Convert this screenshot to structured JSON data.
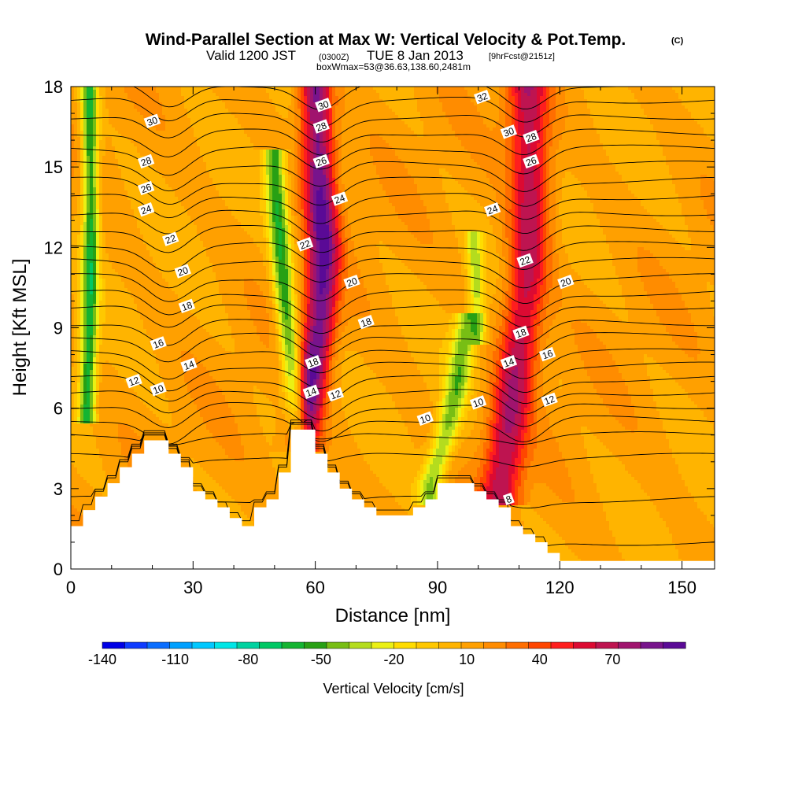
{
  "title": {
    "main": "Wind-Parallel Section at Max W: Vertical Velocity & Pot.Temp.",
    "main_suffix": "(C)",
    "valid_prefix": "Valid 1200 JST",
    "valid_small": "(0300Z)",
    "valid_date": "TUE 8 Jan 2013",
    "valid_suffix": "[9hrFcst@2151z]",
    "box": "boxWmax=53@36.63,138.60,2481m"
  },
  "chart_data": {
    "type": "heatmap",
    "xlabel": "Distance [nm]",
    "ylabel": "Height [Kft MSL]",
    "xlim": [
      0,
      158
    ],
    "ylim": [
      0,
      18
    ],
    "x_ticks": [
      0,
      30,
      60,
      90,
      120,
      150
    ],
    "x_tick_labels": [
      "0",
      "30",
      "60",
      "90",
      "120",
      "150"
    ],
    "y_ticks": [
      0,
      3,
      6,
      9,
      12,
      15,
      18
    ],
    "y_tick_labels": [
      "0",
      "3",
      "6",
      "9",
      "12",
      "15",
      "18"
    ],
    "colorbar": {
      "label": "Vertical Velocity [cm/s]",
      "tick_labels": [
        "-140",
        "-110",
        "-80",
        "-50",
        "-20",
        "10",
        "40",
        "70"
      ],
      "tick_values": [
        -140,
        -110,
        -80,
        -50,
        -20,
        10,
        40,
        70
      ],
      "range": [
        -140,
        100
      ],
      "colors": [
        "#0000e6",
        "#0f3cff",
        "#0a6eff",
        "#00a0ff",
        "#00c8ff",
        "#00e6e6",
        "#00d2a0",
        "#00c864",
        "#14b432",
        "#28a014",
        "#78be14",
        "#b4dc1e",
        "#ebf014",
        "#ffdc00",
        "#ffc800",
        "#ffb400",
        "#ffa000",
        "#ff8c00",
        "#ff6e00",
        "#ff4600",
        "#ff1e1e",
        "#dc0a32",
        "#be1450",
        "#a0146e",
        "#78148c",
        "#5a0a96"
      ]
    },
    "background_velocity": 10,
    "updrafts": [
      {
        "x": [
          24,
          25,
          27,
          28,
          24
        ],
        "y": [
          18,
          14,
          11,
          8,
          5
        ],
        "peak": 40,
        "width_nm": 5
      },
      {
        "x": [
          57,
          58,
          59.5,
          61,
          62,
          61,
          60
        ],
        "y": [
          5,
          6,
          7.5,
          9,
          12,
          15,
          18
        ],
        "peak": 90,
        "width_nm": 4
      },
      {
        "x": [
          105.5,
          107,
          110,
          112,
          113,
          112
        ],
        "y": [
          3,
          5,
          8,
          11,
          14,
          18
        ],
        "peak": 70,
        "width_nm": 5
      }
    ],
    "downdrafts": [
      {
        "x": [
          4,
          4.5,
          5,
          4.5
        ],
        "y": [
          6,
          9,
          13,
          18
        ],
        "peak": -60,
        "width_nm": 2
      },
      {
        "x": [
          56,
          52.5,
          50
        ],
        "y": [
          5,
          10,
          15
        ],
        "peak": -55,
        "width_nm": 2.5
      },
      {
        "x": [
          88,
          92,
          95,
          97
        ],
        "y": [
          3,
          5,
          7,
          9
        ],
        "peak": -40,
        "width_nm": 3
      },
      {
        "x": [
          100,
          99
        ],
        "y": [
          9,
          12
        ],
        "peak": -30,
        "width_nm": 2
      }
    ],
    "terrain": {
      "x": [
        0,
        3,
        3,
        6,
        6,
        9,
        9,
        12,
        12,
        15,
        15,
        18,
        18,
        24,
        24,
        27,
        27,
        30,
        30,
        33,
        33,
        36,
        36,
        39,
        39,
        42,
        42,
        45,
        45,
        48,
        48,
        51,
        51,
        54,
        54,
        57,
        57,
        60,
        60,
        63,
        63,
        66,
        66,
        69,
        69,
        72,
        72,
        75,
        75,
        78,
        78,
        81,
        81,
        84,
        84,
        87,
        87,
        90,
        90,
        93,
        93,
        96,
        96,
        99,
        99,
        102,
        102,
        105,
        105,
        108,
        108,
        111,
        111,
        114,
        114,
        117,
        117,
        120,
        120,
        158
      ],
      "y": [
        1.6,
        1.6,
        2.2,
        2.2,
        2.7,
        2.7,
        3.2,
        3.2,
        3.8,
        3.8,
        4.3,
        4.3,
        4.8,
        4.8,
        4.3,
        4.3,
        3.8,
        3.8,
        2.9,
        2.9,
        2.6,
        2.6,
        2.3,
        2.3,
        1.9,
        1.9,
        1.6,
        1.6,
        2.3,
        2.3,
        2.6,
        2.6,
        3.6,
        3.6,
        5.2,
        5.2,
        5.2,
        5.2,
        4.3,
        4.3,
        3.6,
        3.6,
        3.0,
        3.0,
        2.6,
        2.6,
        2.3,
        2.3,
        2.0,
        2.0,
        2.0,
        2.0,
        2.0,
        2.0,
        2.3,
        2.3,
        2.6,
        2.6,
        3.2,
        3.2,
        3.2,
        3.2,
        3.2,
        3.2,
        2.9,
        2.9,
        2.6,
        2.6,
        2.3,
        2.3,
        1.6,
        1.6,
        1.3,
        1.3,
        1.0,
        1.0,
        0.6,
        0.6,
        0.3,
        0.3
      ]
    },
    "isentropes": {
      "theta": [
        6,
        7,
        8,
        9,
        10,
        11,
        12,
        13,
        14,
        15,
        16,
        17,
        18,
        19,
        20,
        21,
        22,
        23,
        24,
        25,
        26,
        27,
        28,
        29,
        30,
        31,
        32
      ],
      "base_heights_kft": [
        1.0,
        2.6,
        4.2,
        5.0,
        5.6,
        6.1,
        6.6,
        7.1,
        7.6,
        8.1,
        8.7,
        9.2,
        9.8,
        10.3,
        10.9,
        11.5,
        12.1,
        12.7,
        13.3,
        13.9,
        14.5,
        15.1,
        15.7,
        16.3,
        16.9,
        17.5,
        18.1
      ],
      "labels": [
        {
          "text": "30",
          "x": 20,
          "y": 16.7
        },
        {
          "text": "28",
          "x": 18.5,
          "y": 15.2
        },
        {
          "text": "26",
          "x": 18.5,
          "y": 14.2
        },
        {
          "text": "24",
          "x": 18.5,
          "y": 13.4
        },
        {
          "text": "22",
          "x": 24.5,
          "y": 12.3
        },
        {
          "text": "20",
          "x": 27.5,
          "y": 11.1
        },
        {
          "text": "18",
          "x": 28.5,
          "y": 9.8
        },
        {
          "text": "16",
          "x": 21.5,
          "y": 8.4
        },
        {
          "text": "14",
          "x": 29,
          "y": 7.6
        },
        {
          "text": "12",
          "x": 15.5,
          "y": 7.0
        },
        {
          "text": "10",
          "x": 21.5,
          "y": 6.7
        },
        {
          "text": "30",
          "x": 62,
          "y": 17.3
        },
        {
          "text": "28",
          "x": 61.5,
          "y": 16.5
        },
        {
          "text": "26",
          "x": 61.5,
          "y": 15.2
        },
        {
          "text": "24",
          "x": 66,
          "y": 13.8
        },
        {
          "text": "22",
          "x": 57.5,
          "y": 12.1
        },
        {
          "text": "20",
          "x": 69,
          "y": 10.7
        },
        {
          "text": "18",
          "x": 72.5,
          "y": 9.2
        },
        {
          "text": "18",
          "x": 59.5,
          "y": 7.7
        },
        {
          "text": "14",
          "x": 59,
          "y": 6.6
        },
        {
          "text": "12",
          "x": 65,
          "y": 6.5
        },
        {
          "text": "10",
          "x": 87,
          "y": 5.6
        },
        {
          "text": "32",
          "x": 101,
          "y": 17.6
        },
        {
          "text": "30",
          "x": 107.5,
          "y": 16.3
        },
        {
          "text": "28",
          "x": 113,
          "y": 16.1
        },
        {
          "text": "26",
          "x": 113,
          "y": 15.2
        },
        {
          "text": "24",
          "x": 103.5,
          "y": 13.4
        },
        {
          "text": "22",
          "x": 111.5,
          "y": 11.5
        },
        {
          "text": "20",
          "x": 121.5,
          "y": 10.7
        },
        {
          "text": "18",
          "x": 110.5,
          "y": 8.8
        },
        {
          "text": "16",
          "x": 117,
          "y": 8.0
        },
        {
          "text": "14",
          "x": 107.5,
          "y": 7.7
        },
        {
          "text": "12",
          "x": 117.5,
          "y": 6.3
        },
        {
          "text": "10",
          "x": 100,
          "y": 6.2
        },
        {
          "text": "8",
          "x": 107.5,
          "y": 2.6
        }
      ]
    }
  }
}
